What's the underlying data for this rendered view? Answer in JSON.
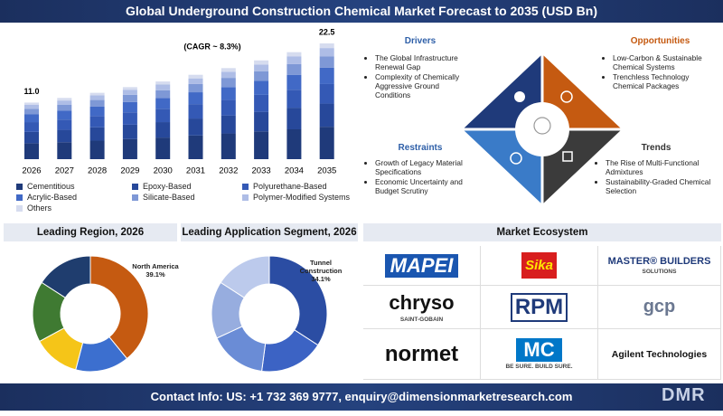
{
  "header": {
    "title": "Global Underground Construction Chemical Market Forecast to 2035 (USD Bn)"
  },
  "chart_data": [
    {
      "type": "stacked-bar",
      "subtitle": "(CAGR ~ 8.3%)",
      "categories": [
        "2026",
        "2027",
        "2028",
        "2029",
        "2030",
        "2031",
        "2032",
        "2033",
        "2034",
        "2035"
      ],
      "series": [
        {
          "name": "Cementitious",
          "color": "#1f3a7a",
          "values": [
            3.1,
            3.3,
            3.6,
            3.9,
            4.2,
            4.6,
            5.0,
            5.4,
            5.8,
            6.3
          ]
        },
        {
          "name": "Epoxy-Based",
          "color": "#27489a",
          "values": [
            2.2,
            2.4,
            2.6,
            2.8,
            3.0,
            3.3,
            3.5,
            3.8,
            4.2,
            4.5
          ]
        },
        {
          "name": "Polyurethane-Based",
          "color": "#3459b5",
          "values": [
            1.9,
            2.0,
            2.2,
            2.4,
            2.6,
            2.8,
            3.0,
            3.3,
            3.5,
            3.8
          ]
        },
        {
          "name": "Acrylic-Based",
          "color": "#4169c6",
          "values": [
            1.5,
            1.7,
            1.8,
            2.0,
            2.1,
            2.3,
            2.5,
            2.7,
            2.9,
            3.2
          ]
        },
        {
          "name": "Silicate-Based",
          "color": "#7e98d6",
          "values": [
            1.1,
            1.2,
            1.3,
            1.4,
            1.5,
            1.6,
            1.8,
            1.9,
            2.1,
            2.2
          ]
        },
        {
          "name": "Polymer-Modified Systems",
          "color": "#aebde6",
          "values": [
            0.8,
            0.8,
            0.9,
            1.0,
            1.1,
            1.1,
            1.2,
            1.3,
            1.5,
            1.6
          ]
        },
        {
          "name": "Others",
          "color": "#d6dcef",
          "values": [
            0.4,
            0.5,
            0.5,
            0.5,
            0.6,
            0.7,
            0.7,
            0.8,
            0.8,
            0.9
          ]
        }
      ],
      "annotations": [
        {
          "x": "2026",
          "text": "11.0"
        },
        {
          "x": "2035",
          "text": "22.5"
        }
      ]
    },
    {
      "type": "donut",
      "title": "Leading Region, 2026",
      "categories": [
        "North America",
        null,
        null,
        null,
        null
      ],
      "values": [
        39.1,
        15,
        13,
        17,
        15.9
      ],
      "value_labels": [
        "39.1%",
        null,
        null,
        null,
        null
      ],
      "colors": [
        "#c55a11",
        "#3c6fcf",
        "#f5c518",
        "#3f7a32",
        "#1f3d6e"
      ]
    },
    {
      "type": "donut",
      "title": "Leading Application Segment, 2026",
      "categories": [
        "Tunnel Construction",
        null,
        null,
        null,
        null
      ],
      "values": [
        34.1,
        18,
        16,
        16,
        15.9
      ],
      "value_labels": [
        "34.1%",
        null,
        null,
        null,
        null
      ],
      "colors": [
        "#2b4da3",
        "#3c63c4",
        "#6a8cd6",
        "#97addf",
        "#bccaec"
      ]
    }
  ],
  "quadrant": {
    "drivers": {
      "title": "Drivers",
      "items": [
        "The Global Infrastructure Renewal Gap",
        "Complexity of Chemically Aggressive Ground Conditions"
      ]
    },
    "opportunities": {
      "title": "Opportunities",
      "items": [
        "Low-Carbon & Sustainable Chemical Systems",
        "Trenchless Technology Chemical Packages"
      ]
    },
    "restraints": {
      "title": "Restraints",
      "items": [
        "Growth of Legacy Material Specifications",
        "Economic Uncertainty and Budget Scrutiny"
      ]
    },
    "trends": {
      "title": "Trends",
      "items": [
        "The Rise of Multi-Functional Admixtures",
        "Sustainability-Graded Chemical Selection"
      ]
    }
  },
  "ecosystem": {
    "title": "Market Ecosystem",
    "companies": [
      {
        "name": "MAPEI"
      },
      {
        "name": "Sika"
      },
      {
        "name": "MASTER® BUILDERS",
        "sub": "SOLUTIONS"
      },
      {
        "name": "chryso",
        "sub": "SAINT-GOBAIN"
      },
      {
        "name": "RPM"
      },
      {
        "name": "gcp"
      },
      {
        "name": "normet"
      },
      {
        "name": "MC",
        "sub": "BE SURE. BUILD SURE."
      },
      {
        "name": "Agilent Technologies"
      }
    ]
  },
  "footer": {
    "contact": "Contact Info: US: +1 732 369 9777, enquiry@dimensionmarketresearch.com",
    "logo": "DMR"
  }
}
